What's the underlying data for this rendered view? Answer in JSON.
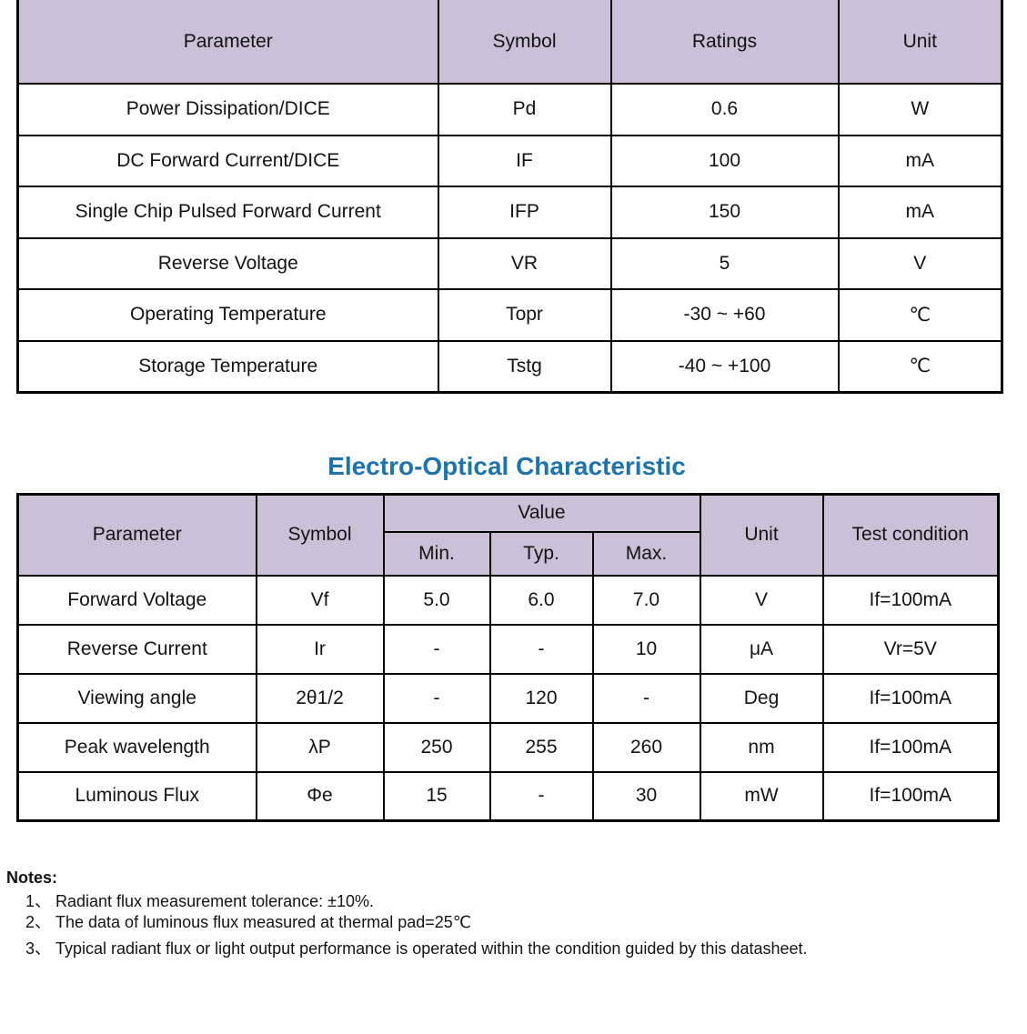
{
  "colors": {
    "header_bg": "#cbc0d8",
    "title_blue": "#1d74ad",
    "border": "#000000",
    "text": "#131313",
    "page_bg": "#ffffff"
  },
  "ratings_table": {
    "headers": {
      "parameter": "Parameter",
      "symbol": "Symbol",
      "ratings": "Ratings",
      "unit": "Unit"
    },
    "rows": [
      {
        "parameter": "Power Dissipation/DICE",
        "symbol": "Pd",
        "ratings": "0.6",
        "unit": "W"
      },
      {
        "parameter": "DC Forward Current/DICE",
        "symbol": "IF",
        "ratings": "100",
        "unit": "mA"
      },
      {
        "parameter": "Single Chip Pulsed Forward Current",
        "symbol": "IFP",
        "ratings": "150",
        "unit": "mA"
      },
      {
        "parameter": "Reverse Voltage",
        "symbol": "VR",
        "ratings": "5",
        "unit": "V"
      },
      {
        "parameter": "Operating Temperature",
        "symbol": "Topr",
        "ratings": "-30 ~ +60",
        "unit": "℃"
      },
      {
        "parameter": "Storage Temperature",
        "symbol": "Tstg",
        "ratings": "-40 ~ +100",
        "unit": "℃"
      }
    ]
  },
  "eo_table": {
    "title": "Electro-Optical Characteristic",
    "headers": {
      "parameter": "Parameter",
      "symbol": "Symbol",
      "value": "Value",
      "min": "Min.",
      "typ": "Typ.",
      "max": "Max.",
      "unit": "Unit",
      "test_condition": "Test condition"
    },
    "rows": [
      {
        "parameter": "Forward Voltage",
        "symbol": "Vf",
        "min": "5.0",
        "typ": "6.0",
        "max": "7.0",
        "unit": "V",
        "test_condition": "If=100mA"
      },
      {
        "parameter": "Reverse Current",
        "symbol": "Ir",
        "min": "-",
        "typ": "-",
        "max": "10",
        "unit": "μA",
        "test_condition": "Vr=5V"
      },
      {
        "parameter": "Viewing angle",
        "symbol": "2θ1/2",
        "min": "-",
        "typ": "120",
        "max": "-",
        "unit": "Deg",
        "test_condition": "If=100mA"
      },
      {
        "parameter": "Peak wavelength",
        "symbol": "λP",
        "min": "250",
        "typ": "255",
        "max": "260",
        "unit": "nm",
        "test_condition": "If=100mA"
      },
      {
        "parameter": "Luminous Flux",
        "symbol": "Φe",
        "min": "15",
        "typ": "-",
        "max": "30",
        "unit": "mW",
        "test_condition": "If=100mA"
      }
    ]
  },
  "notes": {
    "label": "Notes:",
    "items": [
      {
        "num": "1、",
        "text": "Radiant flux measurement tolerance: ±10%."
      },
      {
        "num": "2、",
        "text": "The data of luminous flux measured at thermal pad=25℃"
      },
      {
        "num": "3、",
        "text": "Typical radiant flux or light output performance is operated within the condition guided by this datasheet."
      }
    ]
  }
}
